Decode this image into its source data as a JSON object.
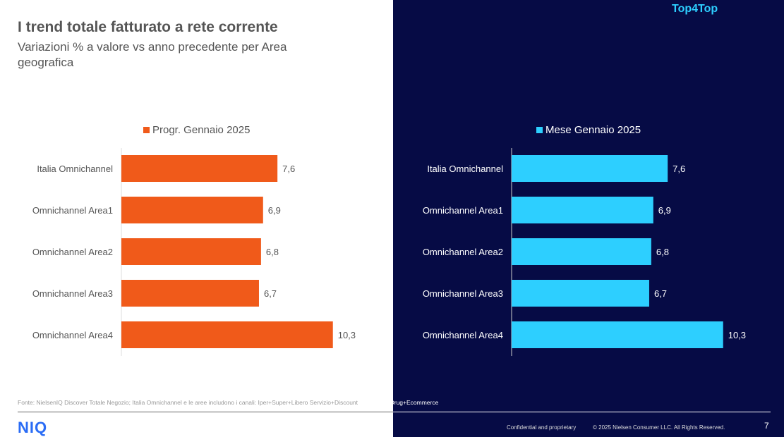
{
  "header": {
    "title": "I trend totale fatturato a rete corrente",
    "subtitle": "Variazioni % a valore vs anno precedente per Area geografica",
    "brand": "Top4Top"
  },
  "chart_data": [
    {
      "type": "bar",
      "orientation": "horizontal",
      "legend": "Progr. Gennaio 2025",
      "color": "#f05a1a",
      "categories": [
        "Italia Omnichannel",
        "Omnichannel Area1",
        "Omnichannel Area2",
        "Omnichannel Area3",
        "Omnichannel Area4"
      ],
      "values": [
        7.6,
        6.9,
        6.8,
        6.7,
        10.3
      ],
      "labels": [
        "7,6",
        "6,9",
        "6,8",
        "6,7",
        "10,3"
      ],
      "legend_position": "top"
    },
    {
      "type": "bar",
      "orientation": "horizontal",
      "legend": "Mese Gennaio 2025",
      "color": "#2dcfff",
      "categories": [
        "Italia Omnichannel",
        "Omnichannel Area1",
        "Omnichannel Area2",
        "Omnichannel Area3",
        "Omnichannel Area4"
      ],
      "values": [
        7.6,
        6.9,
        6.8,
        6.7,
        10.3
      ],
      "labels": [
        "7,6",
        "6,9",
        "6,8",
        "6,7",
        "10,3"
      ],
      "legend_position": "top"
    }
  ],
  "footer": {
    "source_a": "Fonte: NielsenIQ Discover Totale Negozio; Italia Omnichannel e le aree includono i canali: Iper+Super+Libero Servizio+Discount",
    "source_b": "+Specialisti Drug+Ecommerce",
    "logo": "NIQ",
    "confidential": "Confidential and proprietary",
    "copyright": "© 2025 Nielsen Consumer LLC. All Rights Reserved.",
    "page": "7"
  }
}
